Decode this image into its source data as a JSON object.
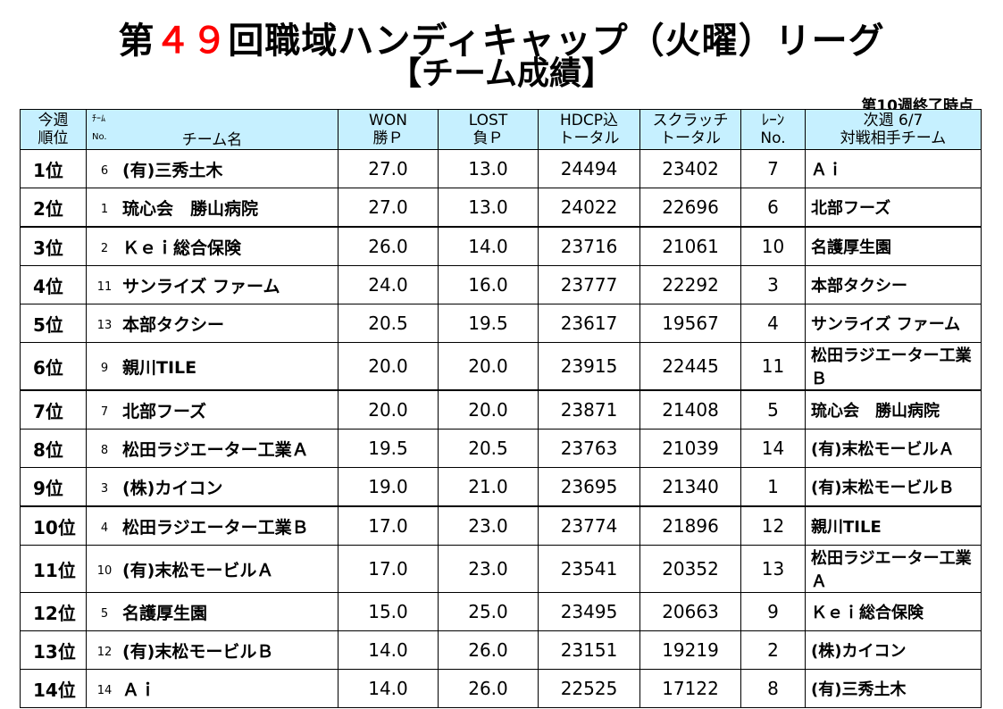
{
  "title": {
    "prefix": "第",
    "number": "４９",
    "suffix": "回職域ハンディキャップ（火曜）リーグ"
  },
  "subtitle": "【チーム成績】",
  "as_of": "第10週終了時点",
  "headers": {
    "rank": [
      "今週",
      "順位"
    ],
    "team_small_top": "ﾁｰﾑ",
    "team_small_no": "No.",
    "team_name": "チーム名",
    "won": [
      "WON",
      "勝Ｐ"
    ],
    "lost": [
      "LOST",
      "負Ｐ"
    ],
    "hdcp": [
      "HDCP込",
      "トータル"
    ],
    "scratch": [
      "スクラッチ",
      "トータル"
    ],
    "lane": [
      "ﾚｰﾝ",
      "No."
    ],
    "opponent": [
      "次週 6/7",
      "対戦相手チーム"
    ]
  },
  "rows": [
    {
      "rank": "1位",
      "no": "6",
      "team": "(有)三秀土木",
      "won": "27.0",
      "lost": "13.0",
      "hdcp": "24494",
      "scratch": "23402",
      "lane": "7",
      "opp": "Ａｉ"
    },
    {
      "rank": "2位",
      "no": "1",
      "team": "琉心会　勝山病院",
      "won": "27.0",
      "lost": "13.0",
      "hdcp": "24022",
      "scratch": "22696",
      "lane": "6",
      "opp": "北部フーズ"
    },
    {
      "rank": "3位",
      "no": "2",
      "team": "Ｋｅｉ総合保険",
      "won": "26.0",
      "lost": "14.0",
      "hdcp": "23716",
      "scratch": "21061",
      "lane": "10",
      "opp": "名護厚生園"
    },
    {
      "rank": "4位",
      "no": "11",
      "team": "サンライズ ファーム",
      "won": "24.0",
      "lost": "16.0",
      "hdcp": "23777",
      "scratch": "22292",
      "lane": "3",
      "opp": "本部タクシー"
    },
    {
      "rank": "5位",
      "no": "13",
      "team": "本部タクシー",
      "won": "20.5",
      "lost": "19.5",
      "hdcp": "23617",
      "scratch": "19567",
      "lane": "4",
      "opp": "サンライズ ファーム"
    },
    {
      "rank": "6位",
      "no": "9",
      "team": "親川TILE",
      "won": "20.0",
      "lost": "20.0",
      "hdcp": "23915",
      "scratch": "22445",
      "lane": "11",
      "opp": "松田ラジエーター工業Ｂ"
    },
    {
      "rank": "7位",
      "no": "7",
      "team": "北部フーズ",
      "won": "20.0",
      "lost": "20.0",
      "hdcp": "23871",
      "scratch": "21408",
      "lane": "5",
      "opp": "琉心会　勝山病院"
    },
    {
      "rank": "8位",
      "no": "8",
      "team": "松田ラジエーター工業Ａ",
      "won": "19.5",
      "lost": "20.5",
      "hdcp": "23763",
      "scratch": "21039",
      "lane": "14",
      "opp": "(有)末松モービルＡ"
    },
    {
      "rank": "9位",
      "no": "3",
      "team": "(株)カイコン",
      "won": "19.0",
      "lost": "21.0",
      "hdcp": "23695",
      "scratch": "21340",
      "lane": "1",
      "opp": "(有)末松モービルＢ"
    },
    {
      "rank": "10位",
      "no": "4",
      "team": "松田ラジエーター工業Ｂ",
      "won": "17.0",
      "lost": "23.0",
      "hdcp": "23774",
      "scratch": "21896",
      "lane": "12",
      "opp": "親川TILE"
    },
    {
      "rank": "11位",
      "no": "10",
      "team": "(有)末松モービルＡ",
      "won": "17.0",
      "lost": "23.0",
      "hdcp": "23541",
      "scratch": "20352",
      "lane": "13",
      "opp": "松田ラジエーター工業Ａ"
    },
    {
      "rank": "12位",
      "no": "5",
      "team": "名護厚生園",
      "won": "15.0",
      "lost": "25.0",
      "hdcp": "23495",
      "scratch": "20663",
      "lane": "9",
      "opp": "Ｋｅｉ総合保険"
    },
    {
      "rank": "13位",
      "no": "12",
      "team": "(有)末松モービルＢ",
      "won": "14.0",
      "lost": "26.0",
      "hdcp": "23151",
      "scratch": "19219",
      "lane": "2",
      "opp": "(株)カイコン"
    },
    {
      "rank": "14位",
      "no": "14",
      "team": "Ａｉ",
      "won": "14.0",
      "lost": "26.0",
      "hdcp": "22525",
      "scratch": "17122",
      "lane": "8",
      "opp": "(有)三秀土木"
    }
  ]
}
